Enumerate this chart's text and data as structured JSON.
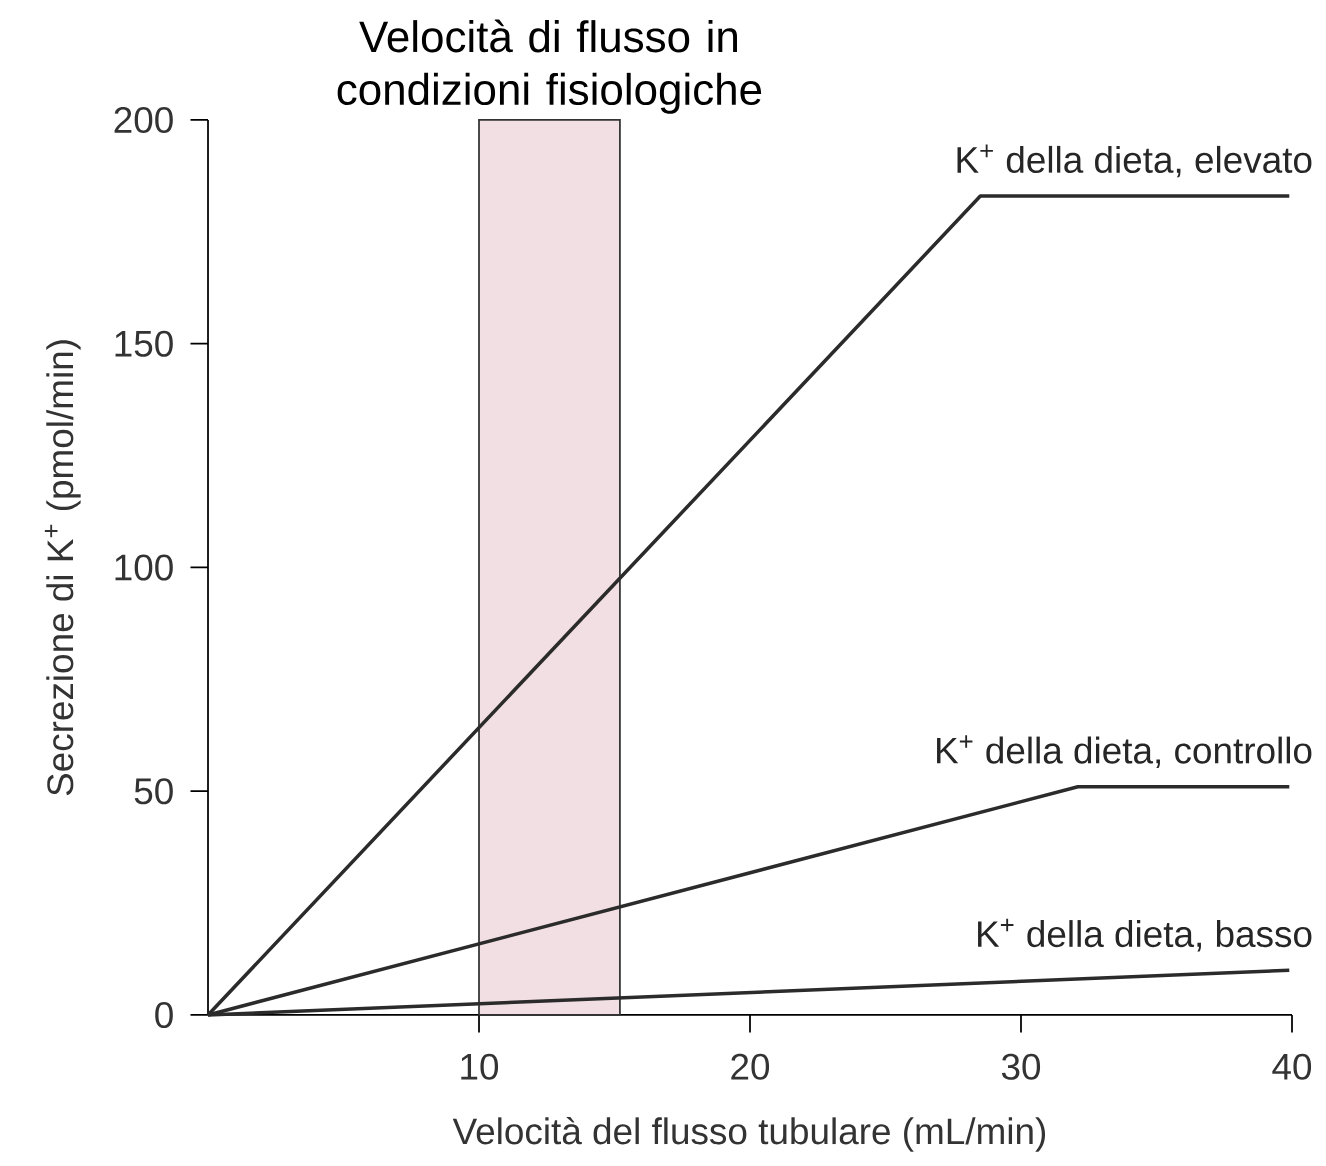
{
  "chart_data": {
    "type": "line",
    "xlabel": "Velocità del flusso tubulare (mL/min)",
    "ylabel": "Secrezione di K$^{+}$ (pmol/min)",
    "xlim": [
      0,
      40
    ],
    "ylim": [
      0,
      200
    ],
    "xticks": [
      10,
      20,
      30,
      40
    ],
    "yticks": [
      0,
      50,
      100,
      150,
      200
    ],
    "grid": false,
    "legend": false,
    "marker": "none",
    "line_style": "solid",
    "series": [
      {
        "name": "K$^{+}$ della dieta, elevato",
        "color": "#2b2b2b",
        "x": [
          0,
          28.5,
          39.9
        ],
        "values": [
          0,
          183,
          183
        ]
      },
      {
        "name": "K$^{+}$ della dieta, controllo",
        "color": "#2b2b2b",
        "x": [
          0,
          32.1,
          39.9
        ],
        "values": [
          0,
          51,
          51
        ]
      },
      {
        "name": "K$^{+}$ della dieta, basso",
        "color": "#2b2b2b",
        "x": [
          0,
          39.9
        ],
        "values": [
          0,
          10
        ]
      }
    ],
    "bands": [
      {
        "axis": "x",
        "from": 10,
        "to": 15.2,
        "label": "Velocità di flusso in condizioni fisiologiche",
        "color": "#f2dfe3"
      }
    ]
  }
}
